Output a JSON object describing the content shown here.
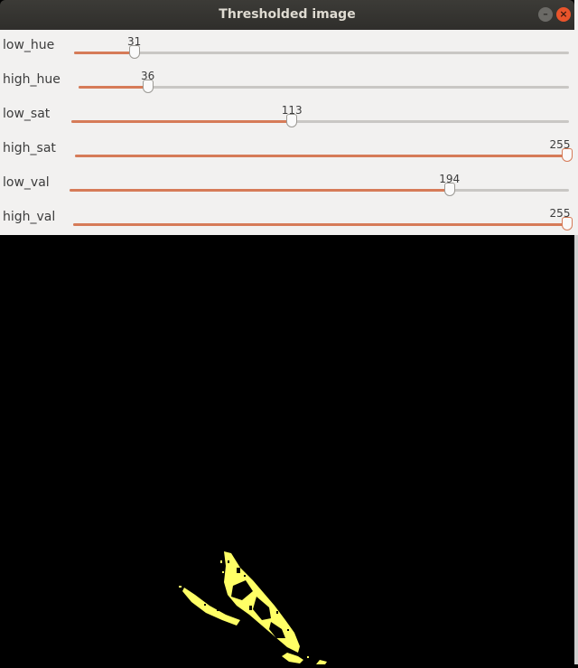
{
  "window": {
    "title": "Thresholded image",
    "buttons": [
      "minimize-icon",
      "close-icon"
    ]
  },
  "trackbars": [
    {
      "id": "low-hue",
      "label": "low_hue",
      "value": 31,
      "max": 255,
      "value_text": "31"
    },
    {
      "id": "high-hue",
      "label": "high_hue",
      "value": 36,
      "max": 255,
      "value_text": "36"
    },
    {
      "id": "low-sat",
      "label": "low_sat",
      "value": 113,
      "max": 255,
      "value_text": "113"
    },
    {
      "id": "high-sat",
      "label": "high_sat",
      "value": 255,
      "max": 255,
      "value_text": "255"
    },
    {
      "id": "low-val",
      "label": "low_val",
      "value": 194,
      "max": 255,
      "value_text": "194"
    },
    {
      "id": "high-val",
      "label": "high_val",
      "value": 255,
      "max": 255,
      "value_text": "255"
    }
  ],
  "colors": {
    "accent": "#d67b58",
    "mask_foreground": "#ffff66",
    "mask_background": "#000000",
    "panel": "#f2f1f0"
  }
}
